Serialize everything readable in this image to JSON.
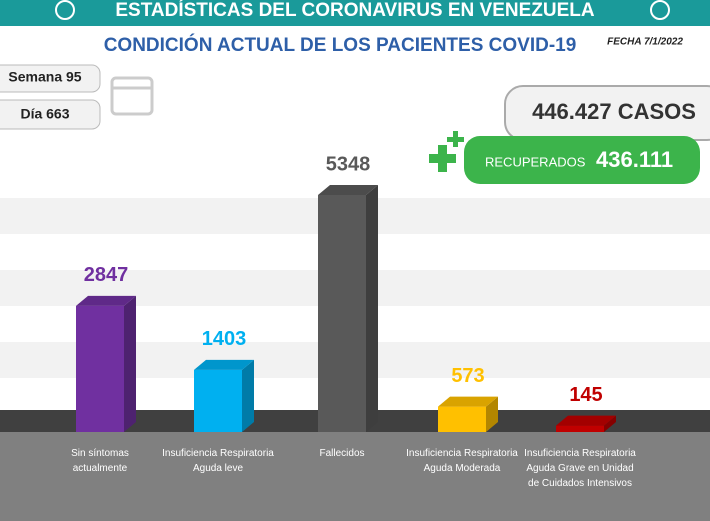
{
  "chart_data": {
    "type": "bar3d",
    "title": "ESTADÍSTICAS DEL CORONAVIRUS EN VENEZUELA",
    "subtitle": "CONDICIÓN ACTUAL DE LOS PACIENTES COVID-19",
    "date_label": "FECHA 7/1/2022",
    "week": "Semana 95",
    "day": "Día 663",
    "cases": "446.427 CASOS",
    "recovered_label": "RECUPERADOS",
    "recovered": "436.111",
    "categories": [
      "Sin síntomas actualmente",
      "Insuficiencia Respiratoria Aguda leve",
      "Fallecidos",
      "Insuficiencia Respiratoria Aguda Moderada",
      "Insuficiencia Respiratoria Aguda Grave en Unidad de Cuidados Intensivos"
    ],
    "values": [
      2847,
      1403,
      5348,
      573,
      145
    ],
    "colors": [
      "#7030a0",
      "#00b0f0",
      "#595959",
      "#ffc000",
      "#c00000"
    ]
  }
}
